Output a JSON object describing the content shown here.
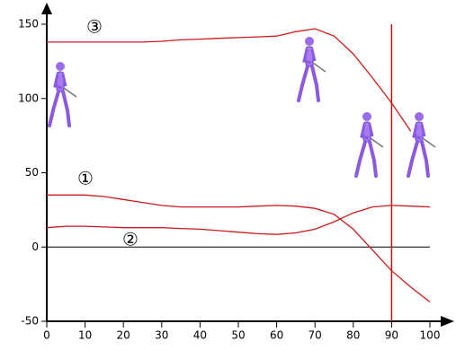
{
  "chart_data": {
    "type": "line",
    "x": [
      0,
      5,
      10,
      15,
      20,
      25,
      30,
      35,
      40,
      45,
      50,
      55,
      60,
      65,
      70,
      75,
      80,
      85,
      90,
      95,
      100
    ],
    "series": [
      {
        "name": "③",
        "color": "#d01818",
        "values": [
          138,
          138,
          138,
          138,
          138,
          138,
          138.5,
          139.5,
          140,
          140.5,
          141,
          141.5,
          142,
          145,
          147,
          142,
          130,
          114,
          97,
          78,
          null
        ]
      },
      {
        "name": "①",
        "color": "#d01818",
        "values": [
          35,
          35,
          35,
          34,
          32,
          30,
          28,
          27,
          27,
          27,
          27,
          27.5,
          28,
          27.5,
          26,
          22,
          12,
          -2,
          -16,
          -27,
          -37
        ]
      },
      {
        "name": "②",
        "color": "#d01818",
        "values": [
          13,
          14,
          14,
          13.5,
          13,
          13,
          13,
          12.5,
          12,
          11,
          10,
          9,
          8.5,
          9.5,
          12,
          17,
          23,
          27,
          28,
          27.5,
          27
        ]
      }
    ],
    "xlim": [
      0,
      100
    ],
    "xticks": [
      0,
      10,
      20,
      30,
      40,
      50,
      60,
      70,
      80,
      90,
      100
    ],
    "ylim": [
      -50,
      150
    ],
    "yticks": [
      -50,
      0,
      50,
      100,
      150
    ],
    "hline": 0,
    "hline_color": "#000000",
    "vline": 90,
    "vline_color": "#c01010"
  }
}
